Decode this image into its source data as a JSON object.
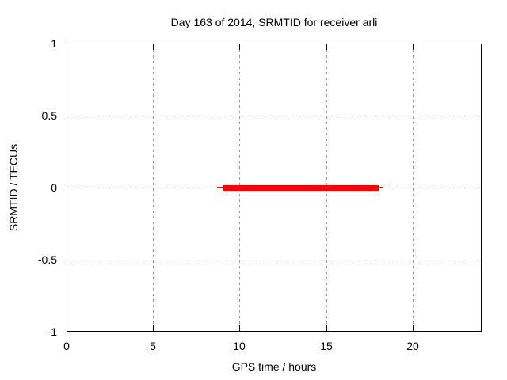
{
  "page": {
    "background": "#ffffff"
  },
  "chart_data": {
    "type": "line",
    "title": "Day 163 of 2014, SRMTID for receiver arli",
    "xlabel": "GPS time / hours",
    "ylabel": "SRMTID / TECUs",
    "xlim": [
      0,
      24
    ],
    "ylim": [
      -1,
      1
    ],
    "xticks": [
      {
        "value": 0,
        "label": "0"
      },
      {
        "value": 5,
        "label": "5"
      },
      {
        "value": 10,
        "label": "10"
      },
      {
        "value": 15,
        "label": "15"
      },
      {
        "value": 20,
        "label": "20"
      }
    ],
    "yticks": [
      {
        "value": -1,
        "label": "-1"
      },
      {
        "value": -0.5,
        "label": "-0.5"
      },
      {
        "value": 0,
        "label": "0"
      },
      {
        "value": 0.5,
        "label": "0.5"
      },
      {
        "value": 1,
        "label": "1"
      }
    ],
    "grid": true,
    "grid_x": [
      5,
      10,
      15,
      20
    ],
    "grid_y": [
      -0.5,
      0,
      0.5
    ],
    "legend_position": "none",
    "colors": {
      "grid": "#999999",
      "axis": "#000000",
      "background": "#ffffff",
      "text": "#000000",
      "series": "#ff0000"
    },
    "series": [
      {
        "name": "SRMTID",
        "color": "#ff0000",
        "points": [
          {
            "x": 9,
            "y": 0
          },
          {
            "x": 18,
            "y": 0
          }
        ],
        "note": "thick horizontal red line at SRMTID = 0 TECUs from about 9 to 18 hours GPS time, with thin 2px tips extending slightly past each end",
        "segments": [
          {
            "x1": 8.7,
            "x2": 18.3,
            "y": 0,
            "thickness_px": 2
          },
          {
            "x1": 9.0,
            "x2": 18.0,
            "y": 0,
            "thickness_px": 7
          }
        ]
      }
    ]
  }
}
